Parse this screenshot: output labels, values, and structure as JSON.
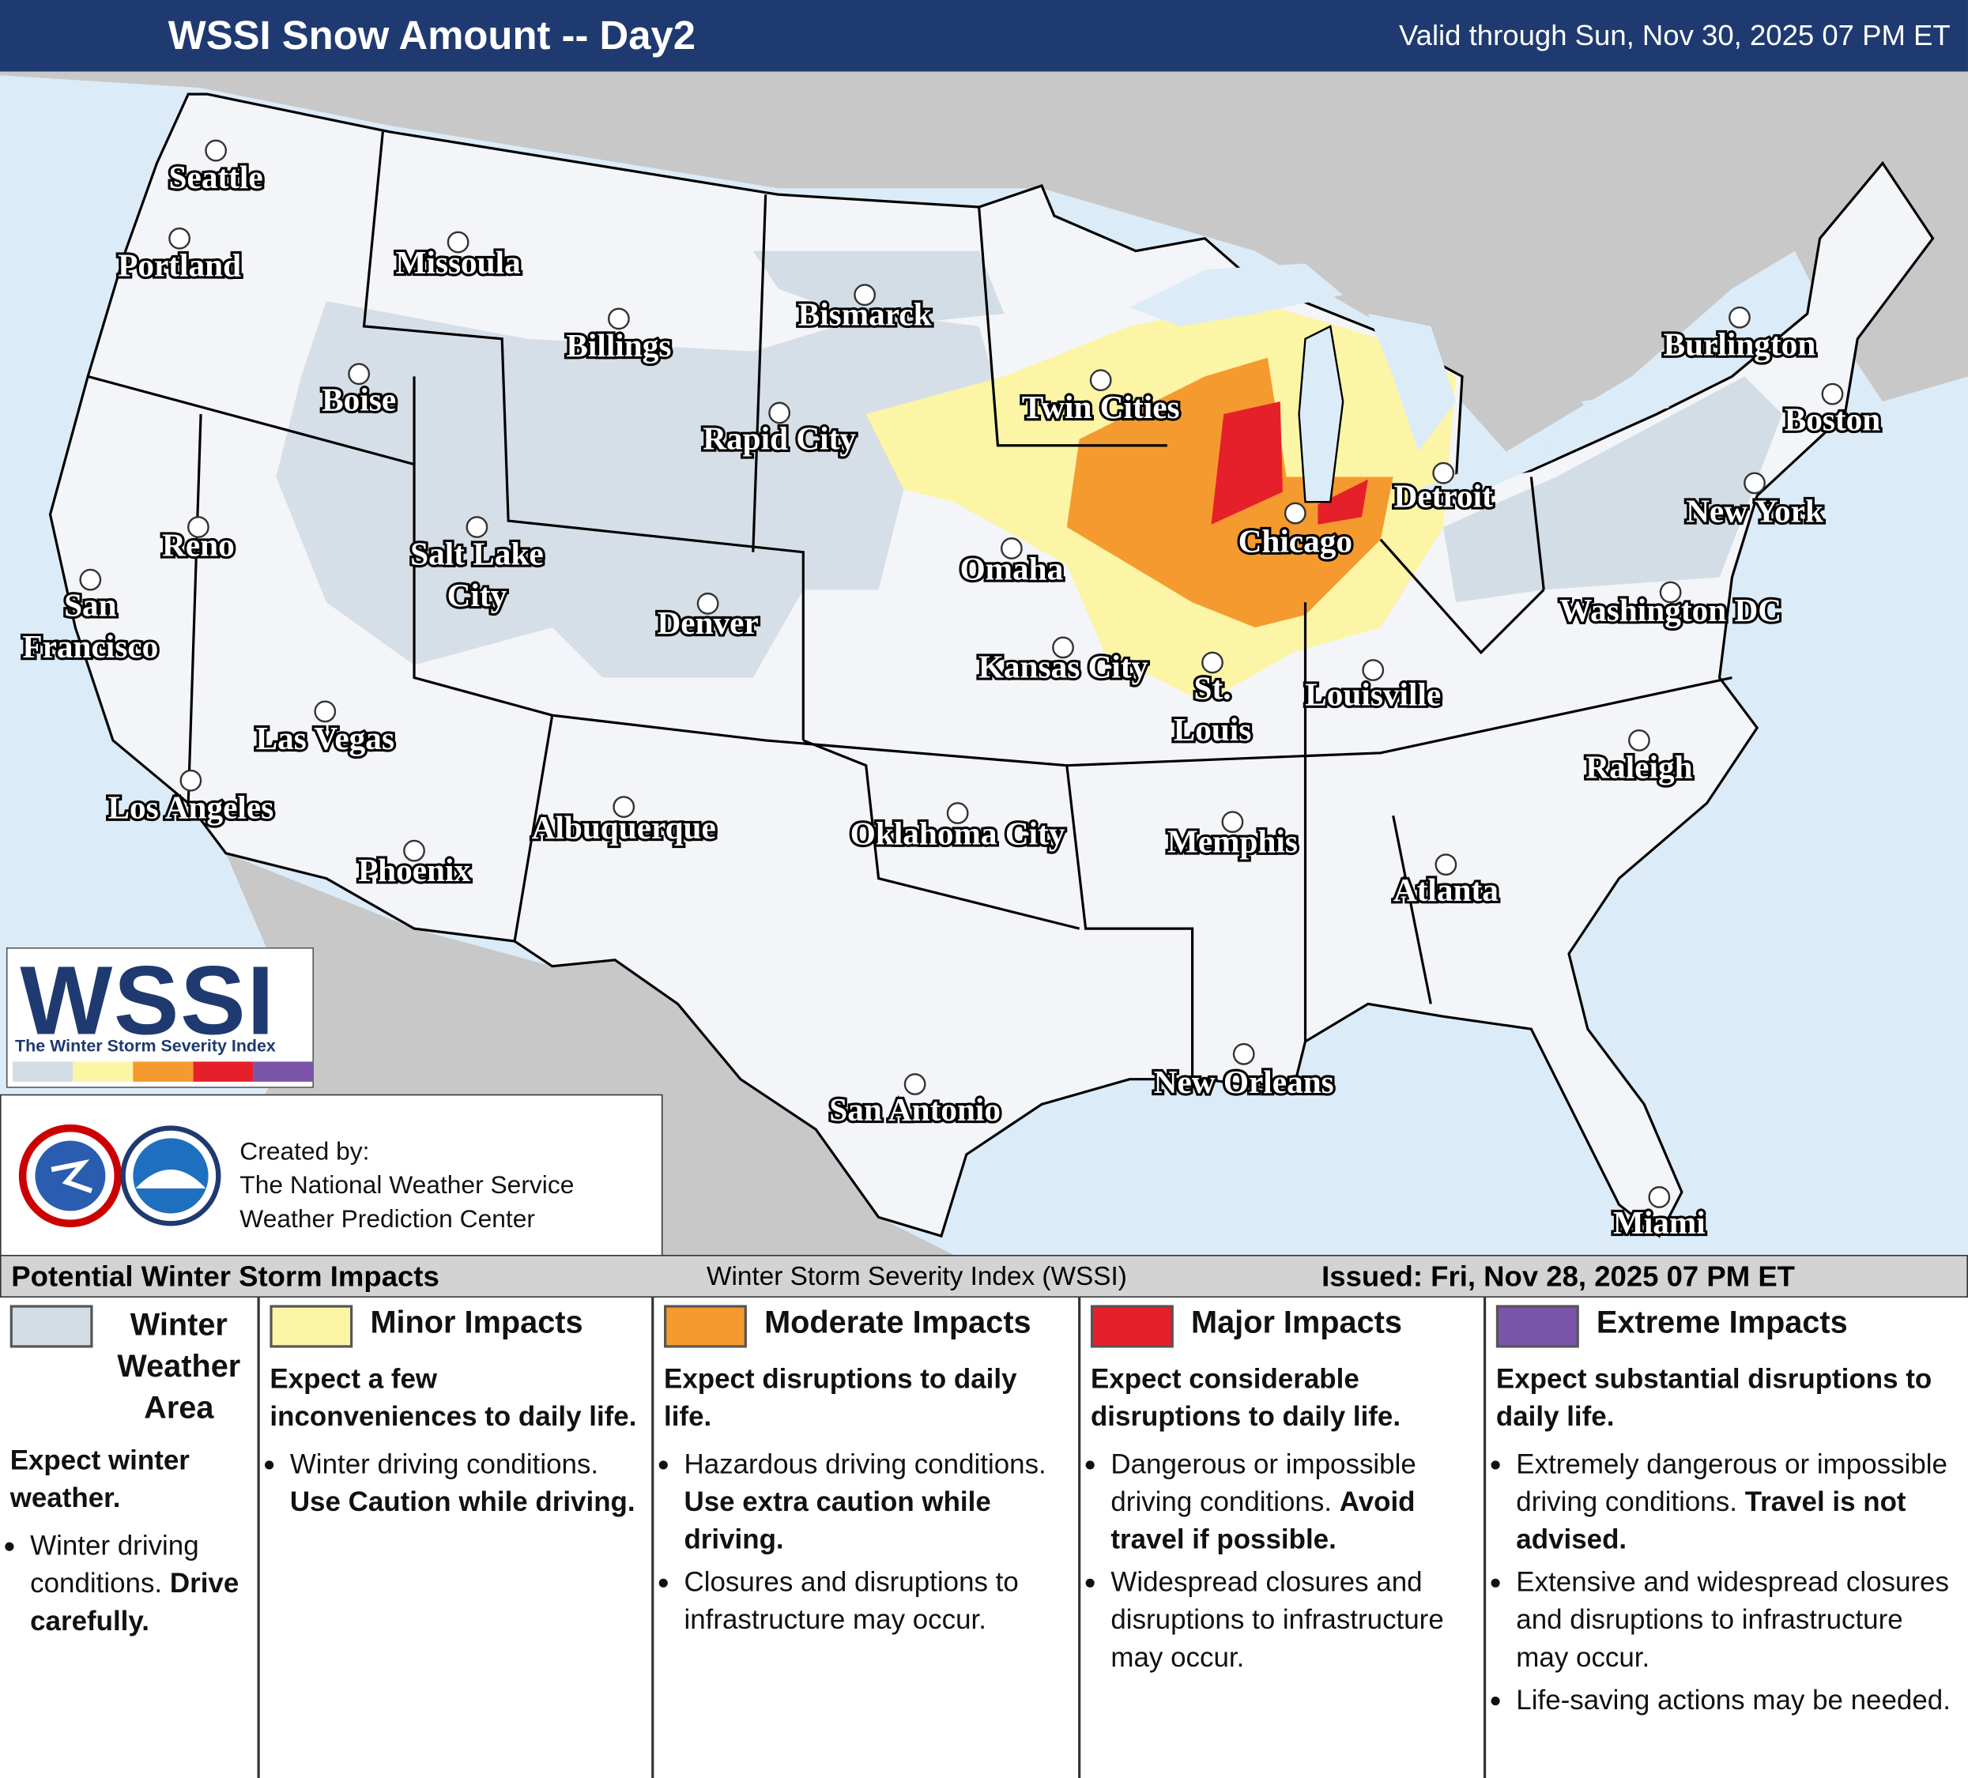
{
  "header": {
    "title": "WSSI Snow Amount -- Day2",
    "valid": "Valid through Sun, Nov 30, 2025 07 PM ET"
  },
  "cities": [
    {
      "lines": [
        "Seattle"
      ]
    },
    {
      "lines": [
        "Portland"
      ]
    },
    {
      "lines": [
        "Missoula"
      ]
    },
    {
      "lines": [
        "Billings"
      ]
    },
    {
      "lines": [
        "Bismarck"
      ]
    },
    {
      "lines": [
        "Boise"
      ]
    },
    {
      "lines": [
        "Rapid City"
      ]
    },
    {
      "lines": [
        "Twin Cities"
      ]
    },
    {
      "lines": [
        "Reno"
      ]
    },
    {
      "lines": [
        "Salt Lake",
        "City"
      ]
    },
    {
      "lines": [
        "San",
        "Francisco"
      ]
    },
    {
      "lines": [
        "Denver"
      ]
    },
    {
      "lines": [
        "Omaha"
      ]
    },
    {
      "lines": [
        "Chicago"
      ]
    },
    {
      "lines": [
        "Detroit"
      ]
    },
    {
      "lines": [
        "Kansas City"
      ]
    },
    {
      "lines": [
        "St.",
        "Louis"
      ]
    },
    {
      "lines": [
        "Louisville"
      ]
    },
    {
      "lines": [
        "Las Vegas"
      ]
    },
    {
      "lines": [
        "Los Angeles"
      ]
    },
    {
      "lines": [
        "Albuquerque"
      ]
    },
    {
      "lines": [
        "Phoenix"
      ]
    },
    {
      "lines": [
        "Oklahoma City"
      ]
    },
    {
      "lines": [
        "Memphis"
      ]
    },
    {
      "lines": [
        "Atlanta"
      ]
    },
    {
      "lines": [
        "Raleigh"
      ]
    },
    {
      "lines": [
        "Washington DC"
      ]
    },
    {
      "lines": [
        "New York"
      ]
    },
    {
      "lines": [
        "Boston"
      ]
    },
    {
      "lines": [
        "Burlington"
      ]
    },
    {
      "lines": [
        "New Orleans"
      ]
    },
    {
      "lines": [
        "San Antonio"
      ]
    },
    {
      "lines": [
        "Miami"
      ]
    }
  ],
  "logo": {
    "title": "WSSI",
    "subtitle": "The Winter Storm Severity Index"
  },
  "credits": {
    "lines": [
      "Created by:",
      "The National Weather Service",
      "Weather Prediction Center"
    ]
  },
  "legend": {
    "title": "Potential Winter Storm Impacts",
    "index": "Winter Storm Severity Index (WSSI)",
    "issued": "Issued: Fri, Nov 28, 2025 07 PM ET",
    "categories": [
      {
        "name": "Winter Weather Area",
        "color": "#d3dde5",
        "summary": "Expect winter weather.",
        "bullets": [
          {
            "text": "Winter driving conditions.",
            "emphasis": "Drive carefully."
          }
        ]
      },
      {
        "name": "Minor Impacts",
        "color": "#fbf5a5",
        "summary": "Expect a few inconveniences to daily life.",
        "bullets": [
          {
            "text": "Winter driving conditions.",
            "emphasis": "Use Caution while driving."
          }
        ]
      },
      {
        "name": "Moderate Impacts",
        "color": "#f59a2f",
        "summary": "Expect disruptions to daily life.",
        "bullets": [
          {
            "text": "Hazardous driving conditions.",
            "emphasis": "Use extra caution while driving."
          },
          {
            "text": "Closures and disruptions to infrastructure may occur."
          }
        ]
      },
      {
        "name": "Major Impacts",
        "color": "#e5202a",
        "summary": "Expect considerable disruptions to daily life.",
        "bullets": [
          {
            "text": "Dangerous or impossible driving conditions.",
            "emphasis": "Avoid travel if possible."
          },
          {
            "text": "Widespread closures and disruptions to infrastructure may occur."
          }
        ]
      },
      {
        "name": "Extreme Impacts",
        "color": "#7b55a8",
        "summary": "Expect substantial disruptions to daily life.",
        "bullets": [
          {
            "text": "Extremely dangerous or impossible driving conditions.",
            "emphasis": "Travel is not advised."
          },
          {
            "text": "Extensive and widespread closures and disruptions to infrastructure may occur."
          },
          {
            "text": "Life-saving actions may be needed."
          }
        ]
      }
    ]
  }
}
